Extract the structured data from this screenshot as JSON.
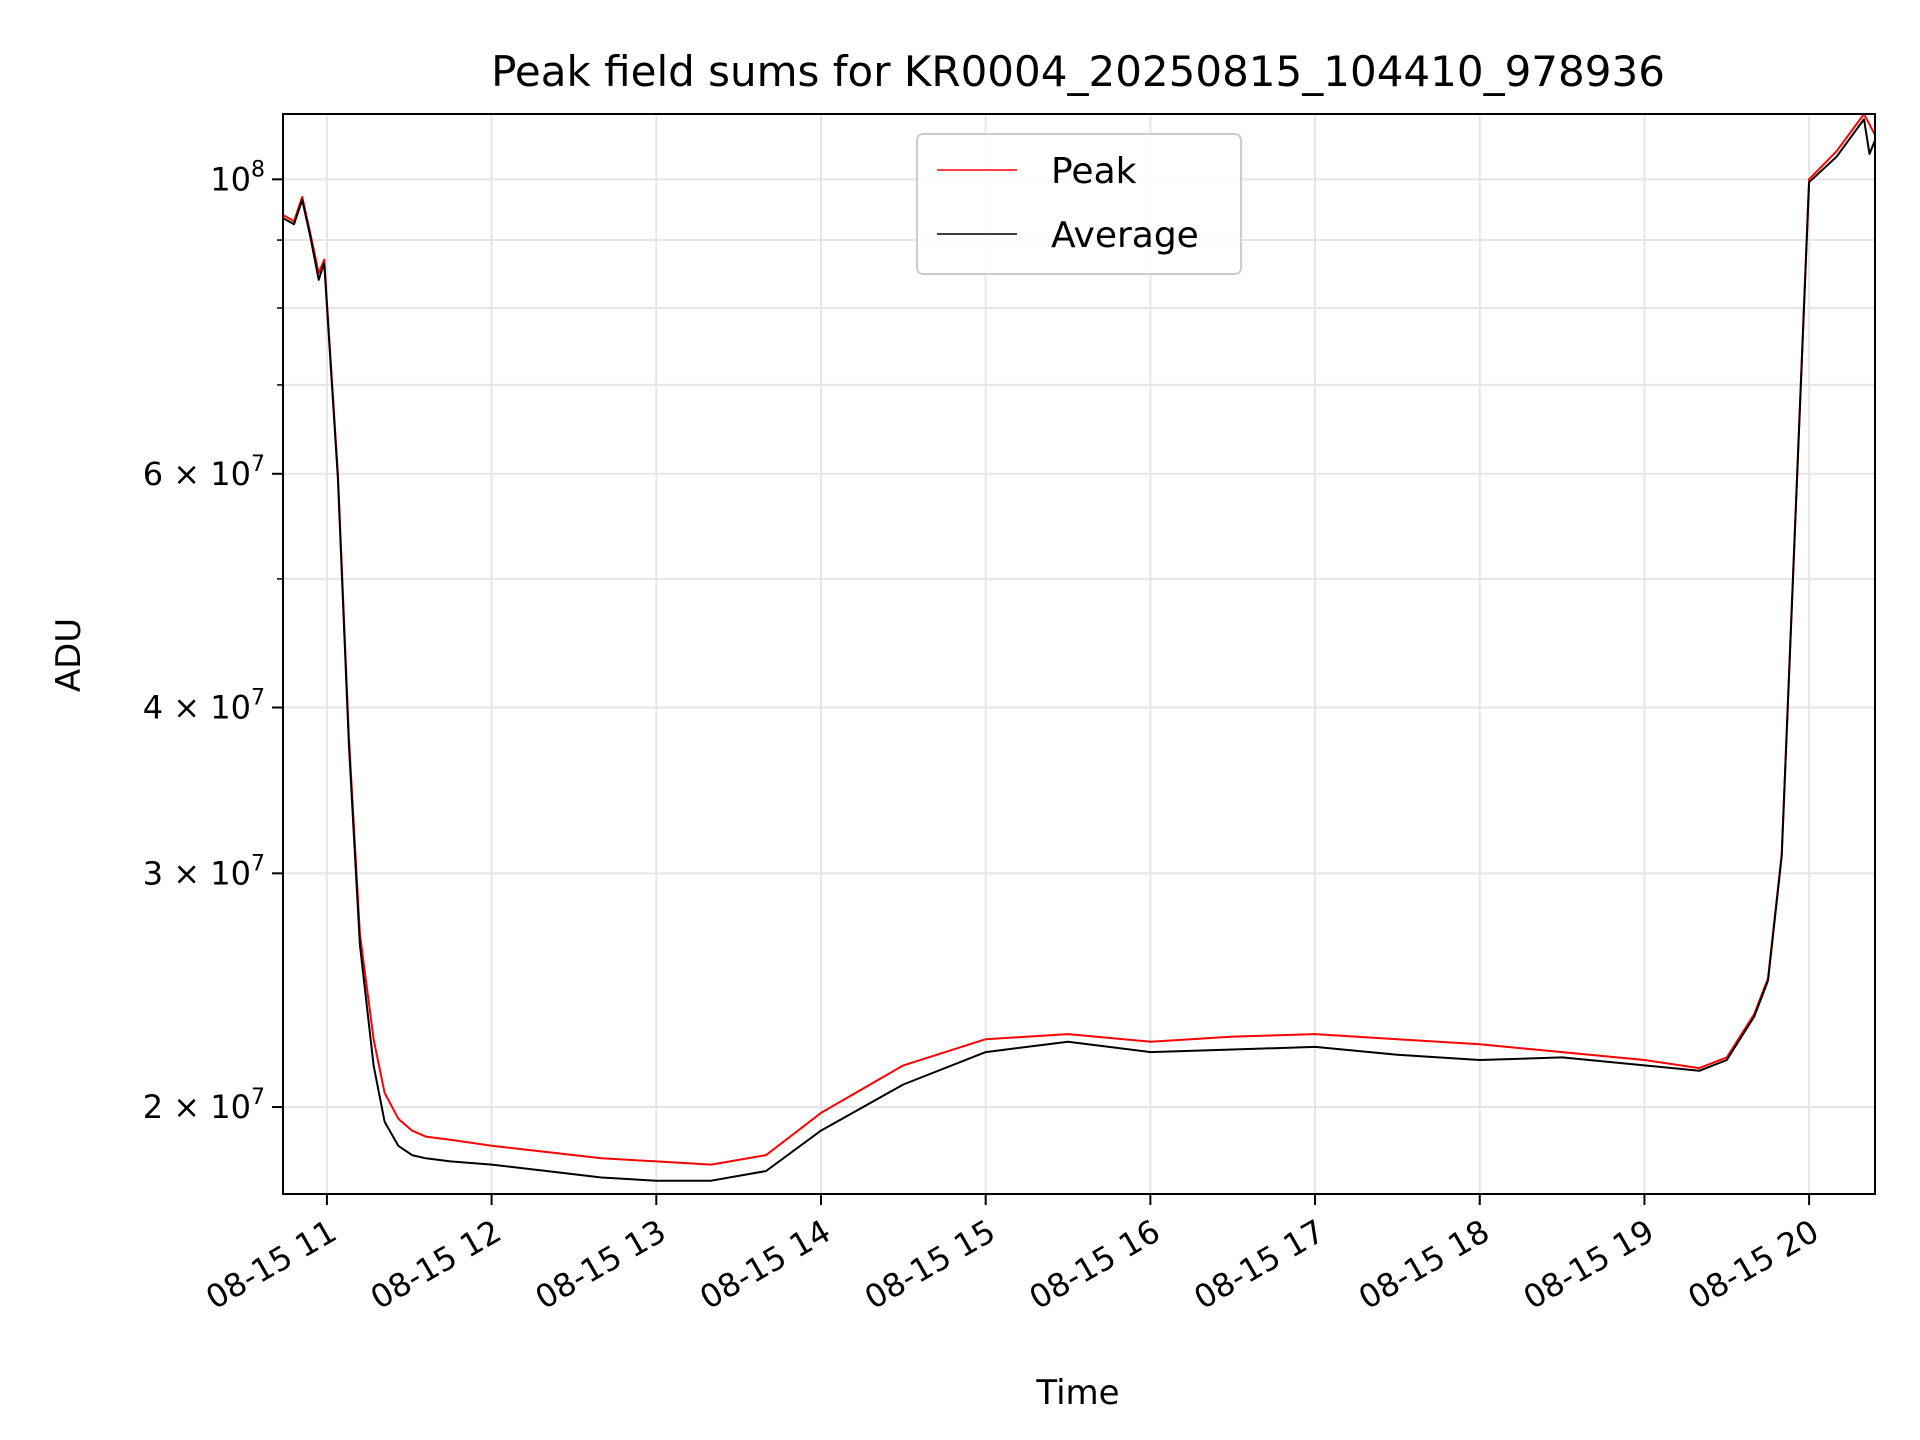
{
  "chart_data": {
    "type": "line",
    "title": "Peak field sums for KR0004_20250815_104410_978936",
    "xlabel": "Time",
    "ylabel": "ADU",
    "y_scale": "log",
    "ylim": [
      17200000,
      112000000
    ],
    "xlim": [
      "08-15 10:44",
      "08-15 20:24"
    ],
    "x_ticks": [
      "08-15 11",
      "08-15 12",
      "08-15 13",
      "08-15 14",
      "08-15 15",
      "08-15 16",
      "08-15 17",
      "08-15 18",
      "08-15 19",
      "08-15 20"
    ],
    "x_tick_times": [
      "08-15 11:00",
      "08-15 12:00",
      "08-15 13:00",
      "08-15 14:00",
      "08-15 15:00",
      "08-15 16:00",
      "08-15 17:00",
      "08-15 18:00",
      "08-15 19:00",
      "08-15 20:00"
    ],
    "y_ticks": [
      {
        "value": 20000000,
        "mantissa": "2",
        "exp": "7"
      },
      {
        "value": 30000000,
        "mantissa": "3",
        "exp": "7"
      },
      {
        "value": 40000000,
        "mantissa": "4",
        "exp": "7"
      },
      {
        "value": 60000000,
        "mantissa": "6",
        "exp": "7"
      },
      {
        "value": 100000000,
        "mantissa": "",
        "exp": "8"
      }
    ],
    "y_minor_ticks": [
      50000000,
      70000000,
      80000000,
      90000000
    ],
    "grid": true,
    "legend": {
      "position": "upper-center",
      "entries": [
        {
          "name": "Peak",
          "color": "#ff0000"
        },
        {
          "name": "Average",
          "color": "#000000"
        }
      ]
    },
    "series": [
      {
        "name": "Peak",
        "color": "#ff0000",
        "x": [
          "08-15 10:44",
          "08-15 10:48",
          "08-15 10:51",
          "08-15 10:54",
          "08-15 10:57",
          "08-15 10:59",
          "08-15 11:04",
          "08-15 11:08",
          "08-15 11:12",
          "08-15 11:17",
          "08-15 11:21",
          "08-15 11:26",
          "08-15 11:31",
          "08-15 11:36",
          "08-15 11:45",
          "08-15 12:00",
          "08-15 12:20",
          "08-15 12:40",
          "08-15 13:00",
          "08-15 13:20",
          "08-15 13:40",
          "08-15 14:00",
          "08-15 14:30",
          "08-15 15:00",
          "08-15 15:30",
          "08-15 16:00",
          "08-15 16:30",
          "08-15 17:00",
          "08-15 17:30",
          "08-15 18:00",
          "08-15 18:30",
          "08-15 19:00",
          "08-15 19:20",
          "08-15 19:30",
          "08-15 19:40",
          "08-15 19:45",
          "08-15 19:50",
          "08-15 20:00",
          "08-15 20:10",
          "08-15 20:20",
          "08-15 20:22",
          "08-15 20:24"
        ],
        "y": [
          94000000,
          93000000,
          97000000,
          91000000,
          85000000,
          87000000,
          60000000,
          38000000,
          27000000,
          22500000,
          20500000,
          19600000,
          19200000,
          19000000,
          18900000,
          18700000,
          18500000,
          18300000,
          18200000,
          18100000,
          18400000,
          19800000,
          21500000,
          22500000,
          22700000,
          22400000,
          22600000,
          22700000,
          22500000,
          22300000,
          22000000,
          21700000,
          21400000,
          21800000,
          23500000,
          25000000,
          31000000,
          100000000,
          105000000,
          112000000,
          110000000,
          108000000
        ]
      },
      {
        "name": "Average",
        "color": "#000000",
        "x": [
          "08-15 10:44",
          "08-15 10:48",
          "08-15 10:51",
          "08-15 10:54",
          "08-15 10:57",
          "08-15 10:59",
          "08-15 11:04",
          "08-15 11:08",
          "08-15 11:12",
          "08-15 11:17",
          "08-15 11:21",
          "08-15 11:26",
          "08-15 11:31",
          "08-15 11:36",
          "08-15 11:45",
          "08-15 12:00",
          "08-15 12:20",
          "08-15 12:40",
          "08-15 13:00",
          "08-15 13:20",
          "08-15 13:40",
          "08-15 14:00",
          "08-15 14:30",
          "08-15 15:00",
          "08-15 15:30",
          "08-15 16:00",
          "08-15 16:30",
          "08-15 17:00",
          "08-15 17:30",
          "08-15 18:00",
          "08-15 18:30",
          "08-15 19:00",
          "08-15 19:20",
          "08-15 19:30",
          "08-15 19:40",
          "08-15 19:45",
          "08-15 19:50",
          "08-15 20:00",
          "08-15 20:10",
          "08-15 20:20",
          "08-15 20:22",
          "08-15 20:24"
        ],
        "y": [
          93500000,
          92500000,
          96500000,
          90500000,
          84000000,
          86500000,
          59500000,
          37500000,
          26500000,
          21500000,
          19500000,
          18700000,
          18400000,
          18300000,
          18200000,
          18100000,
          17900000,
          17700000,
          17600000,
          17600000,
          17900000,
          19200000,
          20800000,
          22000000,
          22400000,
          22000000,
          22100000,
          22200000,
          21900000,
          21700000,
          21800000,
          21500000,
          21300000,
          21700000,
          23400000,
          24900000,
          30900000,
          99500000,
          104000000,
          111000000,
          104500000,
          107000000
        ]
      }
    ]
  }
}
